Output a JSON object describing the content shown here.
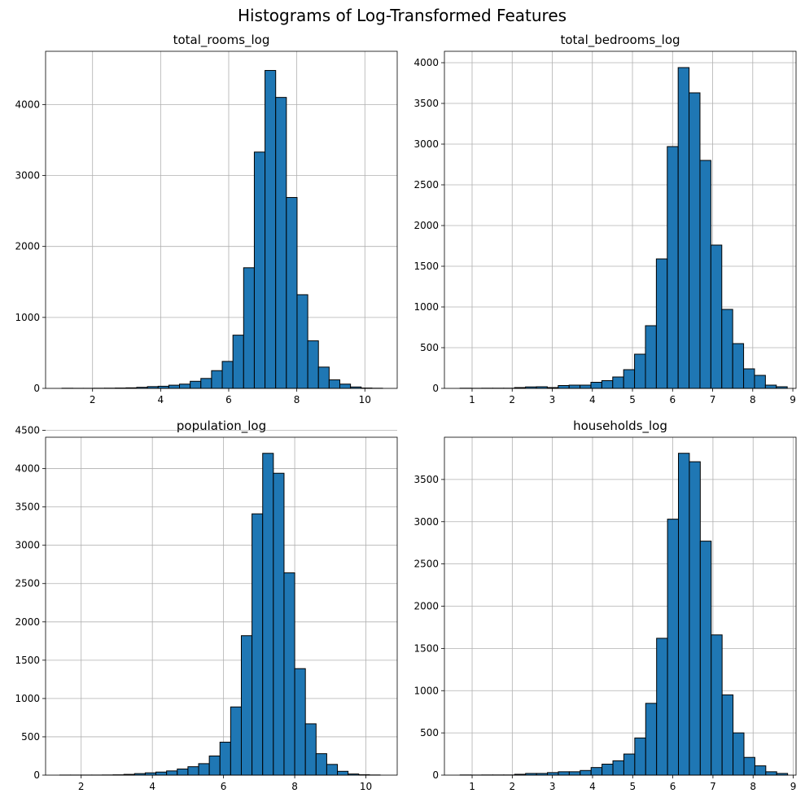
{
  "figure": {
    "title": "Histograms of Log-Transformed Features"
  },
  "colors": {
    "bar_fill": "#1f77b4",
    "bar_edge": "#000000",
    "grid": "#b0b0b0"
  },
  "chart_data": [
    {
      "type": "bar",
      "title": "total_rooms_log",
      "xlabel": "",
      "ylabel": "",
      "grid": true,
      "xlim": [
        0.62,
        10.95
      ],
      "ylim": [
        0,
        4750
      ],
      "xticks": [
        2,
        4,
        6,
        8,
        10
      ],
      "yticks": [
        0,
        1000,
        2000,
        3000,
        4000
      ],
      "bin_start": 1.1,
      "bin_width": 0.314,
      "values": [
        2,
        1,
        1,
        2,
        3,
        5,
        8,
        15,
        25,
        30,
        45,
        60,
        100,
        140,
        250,
        380,
        750,
        1700,
        3330,
        4480,
        4100,
        2690,
        1320,
        670,
        300,
        120,
        60,
        20,
        5,
        2
      ]
    },
    {
      "type": "bar",
      "title": "total_bedrooms_log",
      "xlabel": "",
      "ylabel": "",
      "grid": true,
      "xlim": [
        0.31,
        9.08
      ],
      "ylim": [
        0,
        4140
      ],
      "xticks": [
        1,
        2,
        3,
        4,
        5,
        6,
        7,
        8,
        9
      ],
      "yticks": [
        0,
        500,
        1000,
        1500,
        2000,
        2500,
        3000,
        3500,
        4000
      ],
      "bin_start": 0.7,
      "bin_width": 0.272,
      "values": [
        2,
        1,
        2,
        2,
        2,
        10,
        18,
        20,
        10,
        35,
        40,
        40,
        75,
        95,
        140,
        230,
        420,
        770,
        1590,
        2970,
        3940,
        3630,
        2800,
        1760,
        970,
        550,
        240,
        160,
        40,
        20
      ]
    },
    {
      "type": "bar",
      "title": "population_log",
      "xlabel": "",
      "ylabel": "",
      "grid": true,
      "xlim": [
        1.0,
        10.88
      ],
      "ylim": [
        0,
        4410
      ],
      "xticks": [
        2,
        4,
        6,
        8,
        10
      ],
      "yticks": [
        0,
        500,
        1000,
        1500,
        2000,
        2500,
        3000,
        3500,
        4000,
        4500
      ],
      "bin_start": 1.4,
      "bin_width": 0.3,
      "values": [
        1,
        1,
        1,
        1,
        2,
        4,
        10,
        20,
        30,
        40,
        55,
        80,
        110,
        150,
        250,
        430,
        890,
        1820,
        3410,
        4200,
        3940,
        2640,
        1390,
        670,
        280,
        140,
        50,
        15,
        5,
        2
      ]
    },
    {
      "type": "bar",
      "title": "households_log",
      "xlabel": "",
      "ylabel": "",
      "grid": true,
      "xlim": [
        0.31,
        9.07
      ],
      "ylim": [
        0,
        4000
      ],
      "xticks": [
        1,
        2,
        3,
        4,
        5,
        6,
        7,
        8,
        9
      ],
      "yticks": [
        0,
        500,
        1000,
        1500,
        2000,
        2500,
        3000,
        3500
      ],
      "bin_start": 0.7,
      "bin_width": 0.272,
      "values": [
        2,
        1,
        2,
        2,
        2,
        10,
        20,
        20,
        30,
        40,
        40,
        55,
        90,
        130,
        170,
        250,
        440,
        850,
        1620,
        3030,
        3810,
        3710,
        2770,
        1660,
        950,
        500,
        210,
        110,
        40,
        20
      ]
    }
  ]
}
